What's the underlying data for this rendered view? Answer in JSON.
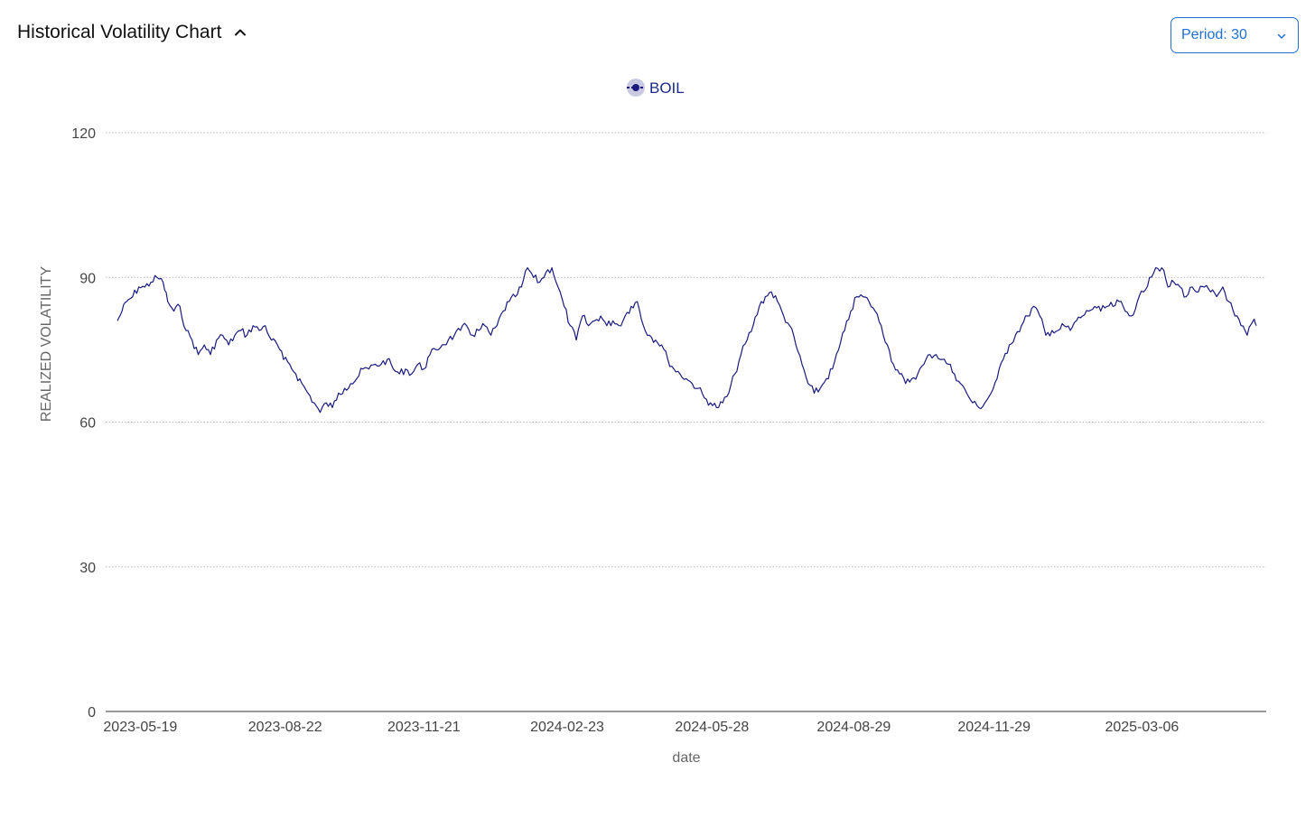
{
  "header": {
    "title": "Historical Volatility Chart",
    "collapse_icon": "chevron-up-icon"
  },
  "period_select": {
    "label": "Period: 30",
    "icon": "chevron-down-icon",
    "color": "#1f6fd6"
  },
  "chart_data": {
    "type": "line",
    "title": "",
    "xlabel": "date",
    "ylabel": "REALIZED VOLATILITY",
    "ylim": [
      0,
      120
    ],
    "yticks": [
      0,
      30,
      60,
      90,
      120
    ],
    "xticks": [
      "2023-05-19",
      "2023-08-22",
      "2023-11-21",
      "2024-02-23",
      "2024-05-28",
      "2024-08-29",
      "2024-11-29",
      "2025-03-06"
    ],
    "xlim": [
      "2023-05-04",
      "2025-05-20"
    ],
    "grid": "horizontal dotted",
    "legend_placement": "top-center",
    "series": [
      {
        "name": "BOIL",
        "color": "#1a1a7e",
        "points": [
          [
            "2023-05-04",
            81
          ],
          [
            "2023-05-07",
            83
          ],
          [
            "2023-05-10",
            85
          ],
          [
            "2023-05-14",
            86
          ],
          [
            "2023-05-18",
            88
          ],
          [
            "2023-05-22",
            88
          ],
          [
            "2023-05-26",
            89
          ],
          [
            "2023-05-30",
            90
          ],
          [
            "2023-06-03",
            89
          ],
          [
            "2023-06-06",
            85
          ],
          [
            "2023-06-10",
            83
          ],
          [
            "2023-06-14",
            84
          ],
          [
            "2023-06-18",
            79
          ],
          [
            "2023-06-22",
            77
          ],
          [
            "2023-06-26",
            74
          ],
          [
            "2023-06-30",
            76
          ],
          [
            "2023-07-04",
            74
          ],
          [
            "2023-07-08",
            77
          ],
          [
            "2023-07-12",
            78
          ],
          [
            "2023-07-16",
            76
          ],
          [
            "2023-07-20",
            78
          ],
          [
            "2023-07-24",
            79
          ],
          [
            "2023-07-28",
            78
          ],
          [
            "2023-08-01",
            80
          ],
          [
            "2023-08-05",
            79
          ],
          [
            "2023-08-09",
            80
          ],
          [
            "2023-08-13",
            77
          ],
          [
            "2023-08-17",
            76
          ],
          [
            "2023-08-21",
            73
          ],
          [
            "2023-08-25",
            72
          ],
          [
            "2023-08-29",
            70
          ],
          [
            "2023-09-02",
            68
          ],
          [
            "2023-09-06",
            66
          ],
          [
            "2023-09-10",
            64
          ],
          [
            "2023-09-14",
            62
          ],
          [
            "2023-09-18",
            64
          ],
          [
            "2023-09-22",
            63
          ],
          [
            "2023-09-26",
            66
          ],
          [
            "2023-09-30",
            67
          ],
          [
            "2023-10-04",
            68
          ],
          [
            "2023-10-08",
            69
          ],
          [
            "2023-10-12",
            71
          ],
          [
            "2023-10-16",
            71
          ],
          [
            "2023-10-20",
            72
          ],
          [
            "2023-10-24",
            72
          ],
          [
            "2023-10-28",
            73
          ],
          [
            "2023-11-01",
            71
          ],
          [
            "2023-11-05",
            70
          ],
          [
            "2023-11-09",
            71
          ],
          [
            "2023-11-13",
            70
          ],
          [
            "2023-11-17",
            72
          ],
          [
            "2023-11-21",
            71
          ],
          [
            "2023-11-25",
            74
          ],
          [
            "2023-11-29",
            75
          ],
          [
            "2023-12-03",
            76
          ],
          [
            "2023-12-07",
            77
          ],
          [
            "2023-12-11",
            78
          ],
          [
            "2023-12-15",
            79
          ],
          [
            "2023-12-19",
            80
          ],
          [
            "2023-12-23",
            78
          ],
          [
            "2023-12-27",
            79
          ],
          [
            "2023-12-31",
            80
          ],
          [
            "2024-01-04",
            78
          ],
          [
            "2024-01-08",
            80
          ],
          [
            "2024-01-12",
            83
          ],
          [
            "2024-01-16",
            85
          ],
          [
            "2024-01-20",
            86
          ],
          [
            "2024-01-24",
            88
          ],
          [
            "2024-01-28",
            92
          ],
          [
            "2024-02-01",
            90
          ],
          [
            "2024-02-05",
            89
          ],
          [
            "2024-02-09",
            91
          ],
          [
            "2024-02-13",
            92
          ],
          [
            "2024-02-17",
            88
          ],
          [
            "2024-02-21",
            84
          ],
          [
            "2024-02-25",
            80
          ],
          [
            "2024-02-29",
            77
          ],
          [
            "2024-03-04",
            82
          ],
          [
            "2024-03-08",
            80
          ],
          [
            "2024-03-12",
            81
          ],
          [
            "2024-03-16",
            82
          ],
          [
            "2024-03-20",
            80
          ],
          [
            "2024-03-24",
            81
          ],
          [
            "2024-03-28",
            80
          ],
          [
            "2024-04-01",
            82
          ],
          [
            "2024-04-05",
            84
          ],
          [
            "2024-04-09",
            85
          ],
          [
            "2024-04-13",
            80
          ],
          [
            "2024-04-17",
            78
          ],
          [
            "2024-04-21",
            77
          ],
          [
            "2024-04-25",
            76
          ],
          [
            "2024-04-29",
            73
          ],
          [
            "2024-05-03",
            71
          ],
          [
            "2024-05-07",
            70
          ],
          [
            "2024-05-11",
            69
          ],
          [
            "2024-05-15",
            68
          ],
          [
            "2024-05-19",
            67
          ],
          [
            "2024-05-23",
            65
          ],
          [
            "2024-05-27",
            64
          ],
          [
            "2024-05-31",
            63
          ],
          [
            "2024-06-04",
            64
          ],
          [
            "2024-06-08",
            66
          ],
          [
            "2024-06-12",
            70
          ],
          [
            "2024-06-16",
            74
          ],
          [
            "2024-06-20",
            77
          ],
          [
            "2024-06-24",
            80
          ],
          [
            "2024-06-28",
            84
          ],
          [
            "2024-07-02",
            86
          ],
          [
            "2024-07-06",
            87
          ],
          [
            "2024-07-10",
            85
          ],
          [
            "2024-07-14",
            82
          ],
          [
            "2024-07-18",
            80
          ],
          [
            "2024-07-22",
            76
          ],
          [
            "2024-07-26",
            72
          ],
          [
            "2024-07-30",
            68
          ],
          [
            "2024-08-03",
            66
          ],
          [
            "2024-08-07",
            67
          ],
          [
            "2024-08-11",
            69
          ],
          [
            "2024-08-15",
            71
          ],
          [
            "2024-08-19",
            75
          ],
          [
            "2024-08-23",
            79
          ],
          [
            "2024-08-27",
            83
          ],
          [
            "2024-08-31",
            86
          ],
          [
            "2024-09-04",
            86
          ],
          [
            "2024-09-08",
            85
          ],
          [
            "2024-09-12",
            83
          ],
          [
            "2024-09-16",
            80
          ],
          [
            "2024-09-20",
            76
          ],
          [
            "2024-09-24",
            72
          ],
          [
            "2024-09-28",
            70
          ],
          [
            "2024-10-02",
            68
          ],
          [
            "2024-10-06",
            69
          ],
          [
            "2024-10-10",
            70
          ],
          [
            "2024-10-14",
            72
          ],
          [
            "2024-10-18",
            74
          ],
          [
            "2024-10-22",
            74
          ],
          [
            "2024-10-26",
            73
          ],
          [
            "2024-10-30",
            72
          ],
          [
            "2024-11-03",
            70
          ],
          [
            "2024-11-07",
            68
          ],
          [
            "2024-11-11",
            66
          ],
          [
            "2024-11-15",
            64
          ],
          [
            "2024-11-19",
            63
          ],
          [
            "2024-11-23",
            64
          ],
          [
            "2024-11-27",
            66
          ],
          [
            "2024-12-01",
            69
          ],
          [
            "2024-12-05",
            73
          ],
          [
            "2024-12-09",
            76
          ],
          [
            "2024-12-13",
            78
          ],
          [
            "2024-12-17",
            80
          ],
          [
            "2024-12-21",
            82
          ],
          [
            "2024-12-25",
            84
          ],
          [
            "2024-12-29",
            82
          ],
          [
            "2025-01-02",
            78
          ],
          [
            "2025-01-06",
            79
          ],
          [
            "2025-01-10",
            79
          ],
          [
            "2025-01-14",
            80
          ],
          [
            "2025-01-18",
            79
          ],
          [
            "2025-01-22",
            81
          ],
          [
            "2025-01-26",
            82
          ],
          [
            "2025-01-30",
            83
          ],
          [
            "2025-02-03",
            84
          ],
          [
            "2025-02-07",
            83
          ],
          [
            "2025-02-11",
            84
          ],
          [
            "2025-02-15",
            84
          ],
          [
            "2025-02-19",
            85
          ],
          [
            "2025-02-23",
            83
          ],
          [
            "2025-02-27",
            82
          ],
          [
            "2025-03-03",
            85
          ],
          [
            "2025-03-07",
            87
          ],
          [
            "2025-03-11",
            90
          ],
          [
            "2025-03-15",
            92
          ],
          [
            "2025-03-19",
            92
          ],
          [
            "2025-03-23",
            88
          ],
          [
            "2025-03-27",
            89
          ],
          [
            "2025-03-31",
            88
          ],
          [
            "2025-04-04",
            86
          ],
          [
            "2025-04-08",
            88
          ],
          [
            "2025-04-12",
            87
          ],
          [
            "2025-04-16",
            88
          ],
          [
            "2025-04-20",
            87
          ],
          [
            "2025-04-24",
            86
          ],
          [
            "2025-04-28",
            88
          ],
          [
            "2025-05-02",
            85
          ],
          [
            "2025-05-06",
            82
          ],
          [
            "2025-05-10",
            80
          ],
          [
            "2025-05-14",
            78
          ],
          [
            "2025-05-18",
            81
          ],
          [
            "2025-05-20",
            80
          ]
        ]
      }
    ]
  }
}
